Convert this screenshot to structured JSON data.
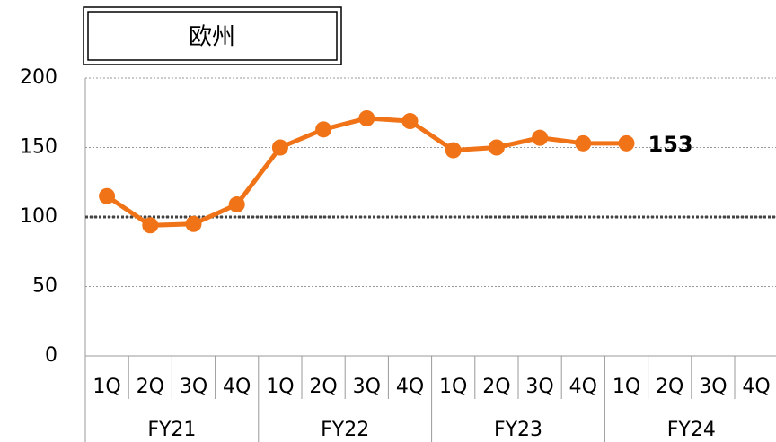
{
  "chart_data": {
    "type": "line",
    "title": "欧州",
    "categories": [
      "1Q",
      "2Q",
      "3Q",
      "4Q",
      "1Q",
      "2Q",
      "3Q",
      "4Q",
      "1Q",
      "2Q",
      "3Q",
      "4Q",
      "1Q",
      "2Q",
      "3Q",
      "4Q"
    ],
    "groups": [
      "FY21",
      "FY22",
      "FY23",
      "FY24"
    ],
    "series": [
      {
        "color": "#f07317",
        "values": [
          115,
          94,
          95,
          109,
          150,
          163,
          171,
          169,
          148,
          150,
          157,
          153,
          153,
          null,
          null,
          null
        ],
        "value_labels": [
          null,
          null,
          null,
          null,
          null,
          null,
          null,
          null,
          null,
          null,
          null,
          null,
          "153",
          null,
          null,
          null
        ]
      }
    ],
    "ylim": [
      0,
      200
    ],
    "yticks": [
      0,
      50,
      100,
      150,
      200
    ],
    "grid": true,
    "reference_line": 100
  }
}
